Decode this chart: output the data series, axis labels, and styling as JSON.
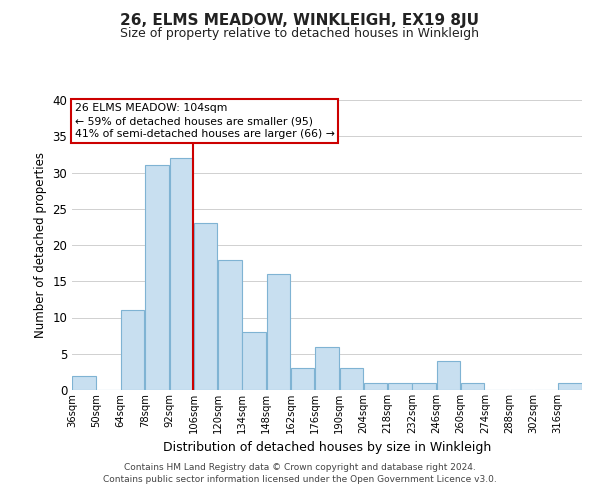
{
  "title": "26, ELMS MEADOW, WINKLEIGH, EX19 8JU",
  "subtitle": "Size of property relative to detached houses in Winkleigh",
  "xlabel": "Distribution of detached houses by size in Winkleigh",
  "ylabel": "Number of detached properties",
  "bar_color": "#c8dff0",
  "bar_edge_color": "#7fb3d3",
  "background_color": "#ffffff",
  "grid_color": "#d0d0d0",
  "bin_labels": [
    "36sqm",
    "50sqm",
    "64sqm",
    "78sqm",
    "92sqm",
    "106sqm",
    "120sqm",
    "134sqm",
    "148sqm",
    "162sqm",
    "176sqm",
    "190sqm",
    "204sqm",
    "218sqm",
    "232sqm",
    "246sqm",
    "260sqm",
    "274sqm",
    "288sqm",
    "302sqm",
    "316sqm"
  ],
  "counts": [
    2,
    0,
    11,
    31,
    32,
    23,
    18,
    8,
    16,
    3,
    6,
    3,
    1,
    1,
    1,
    4,
    1,
    0,
    0,
    0,
    1
  ],
  "bin_edges": [
    36,
    50,
    64,
    78,
    92,
    106,
    120,
    134,
    148,
    162,
    176,
    190,
    204,
    218,
    232,
    246,
    260,
    274,
    288,
    302,
    316,
    330
  ],
  "red_line_x": 106,
  "ylim": [
    0,
    40
  ],
  "annotation_text": "26 ELMS MEADOW: 104sqm\n← 59% of detached houses are smaller (95)\n41% of semi-detached houses are larger (66) →",
  "annotation_box_edge": "#cc0000",
  "footnote1": "Contains HM Land Registry data © Crown copyright and database right 2024.",
  "footnote2": "Contains public sector information licensed under the Open Government Licence v3.0."
}
